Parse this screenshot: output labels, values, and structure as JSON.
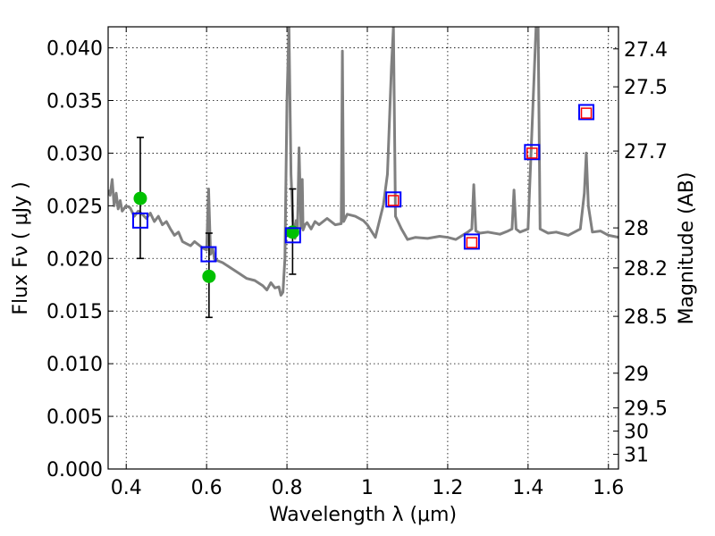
{
  "chart_data": {
    "type": "scatter",
    "xlabel": "Wavelength  λ (μm)",
    "ylabel": "Flux  Fν  ( μJy )",
    "ylabel_right": "Magnitude (AB)",
    "xlim": [
      0.355,
      1.625
    ],
    "ylim": [
      0.0,
      0.042
    ],
    "grid": true,
    "x_ticks": [
      0.4,
      0.6,
      0.8,
      1.0,
      1.2,
      1.4,
      1.6
    ],
    "x_tick_labels": [
      "0.4",
      "0.6",
      "0.8",
      "1",
      "1.2",
      "1.4",
      "1.6"
    ],
    "y_ticks": [
      0.0,
      0.005,
      0.01,
      0.015,
      0.02,
      0.025,
      0.03,
      0.035,
      0.04
    ],
    "y_tick_labels": [
      "0.000",
      "0.005",
      "0.010",
      "0.015",
      "0.020",
      "0.025",
      "0.030",
      "0.035",
      "0.040"
    ],
    "right_ticks": [
      {
        "label": "27.4",
        "flux": 0.0399
      },
      {
        "label": "27.5",
        "flux": 0.0363
      },
      {
        "label": "27.7",
        "flux": 0.0302
      },
      {
        "label": "28",
        "flux": 0.0229
      },
      {
        "label": "28.2",
        "flux": 0.0191
      },
      {
        "label": "28.5",
        "flux": 0.0145
      },
      {
        "label": "29",
        "flux": 0.0091
      },
      {
        "label": "29.5",
        "flux": 0.0058
      },
      {
        "label": "30",
        "flux": 0.0036
      },
      {
        "label": "31",
        "flux": 0.0014
      }
    ],
    "series": [
      {
        "kind": "model_spectrum",
        "color": "#808080",
        "x": [
          0.355,
          0.36,
          0.365,
          0.37,
          0.375,
          0.38,
          0.385,
          0.39,
          0.4,
          0.41,
          0.42,
          0.43,
          0.44,
          0.45,
          0.46,
          0.47,
          0.48,
          0.49,
          0.5,
          0.51,
          0.52,
          0.53,
          0.54,
          0.55,
          0.56,
          0.57,
          0.58,
          0.59,
          0.6,
          0.605,
          0.61,
          0.615,
          0.62,
          0.64,
          0.66,
          0.68,
          0.7,
          0.72,
          0.74,
          0.75,
          0.76,
          0.77,
          0.78,
          0.785,
          0.79,
          0.795,
          0.8,
          0.805,
          0.81,
          0.815,
          0.82,
          0.823,
          0.826,
          0.83,
          0.835,
          0.838,
          0.84,
          0.845,
          0.85,
          0.86,
          0.87,
          0.88,
          0.9,
          0.92,
          0.935,
          0.938,
          0.941,
          0.95,
          0.97,
          0.99,
          1.0,
          1.02,
          1.04,
          1.05,
          1.06,
          1.065,
          1.07,
          1.085,
          1.1,
          1.12,
          1.15,
          1.18,
          1.2,
          1.22,
          1.25,
          1.26,
          1.265,
          1.27,
          1.28,
          1.3,
          1.33,
          1.35,
          1.36,
          1.365,
          1.37,
          1.38,
          1.4,
          1.42,
          1.425,
          1.43,
          1.45,
          1.47,
          1.5,
          1.53,
          1.54,
          1.545,
          1.55,
          1.56,
          1.58,
          1.6,
          1.625
        ],
        "y": [
          0.0265,
          0.026,
          0.0275,
          0.025,
          0.0262,
          0.0247,
          0.0255,
          0.0245,
          0.025,
          0.0248,
          0.024,
          0.0245,
          0.0242,
          0.0238,
          0.0243,
          0.0235,
          0.024,
          0.0232,
          0.0235,
          0.0228,
          0.0222,
          0.0225,
          0.0216,
          0.0214,
          0.0212,
          0.0216,
          0.0213,
          0.021,
          0.0208,
          0.0266,
          0.0204,
          0.021,
          0.0199,
          0.0196,
          0.0191,
          0.0186,
          0.0181,
          0.0179,
          0.0174,
          0.017,
          0.0177,
          0.0172,
          0.0173,
          0.0165,
          0.0168,
          0.02,
          0.035,
          0.042,
          0.028,
          0.0235,
          0.0219,
          0.0236,
          0.0224,
          0.0305,
          0.0229,
          0.0275,
          0.0227,
          0.0232,
          0.0234,
          0.0228,
          0.0235,
          0.0232,
          0.0238,
          0.0232,
          0.0233,
          0.0397,
          0.0235,
          0.0242,
          0.024,
          0.0236,
          0.0232,
          0.022,
          0.0251,
          0.028,
          0.0382,
          0.042,
          0.024,
          0.0228,
          0.0218,
          0.022,
          0.0219,
          0.0221,
          0.022,
          0.0218,
          0.0225,
          0.0228,
          0.027,
          0.0226,
          0.0224,
          0.0225,
          0.0223,
          0.0226,
          0.0228,
          0.0265,
          0.0228,
          0.0225,
          0.0228,
          0.042,
          0.042,
          0.0228,
          0.0224,
          0.0225,
          0.0222,
          0.0228,
          0.0262,
          0.03,
          0.025,
          0.0225,
          0.0226,
          0.0222,
          0.022
        ]
      },
      {
        "kind": "observed_points",
        "color": "#00c000",
        "points": [
          {
            "x": 0.435,
            "y": 0.0257,
            "yerr": [
              0.02,
              0.0315
            ]
          },
          {
            "x": 0.606,
            "y": 0.0183,
            "yerr": [
              0.0144,
              0.0224
            ]
          },
          {
            "x": 0.814,
            "y": 0.0225,
            "yerr": [
              0.0185,
              0.0266
            ]
          }
        ]
      },
      {
        "kind": "model_photometry_blue",
        "color": "#0000ff",
        "x": [
          0.435,
          0.605,
          0.815,
          1.065,
          1.26,
          1.41,
          1.545
        ],
        "y": [
          0.0236,
          0.0204,
          0.0222,
          0.0256,
          0.0216,
          0.0301,
          0.0339
        ]
      },
      {
        "kind": "model_photometry_red",
        "color": "#ff0000",
        "x": [
          1.065,
          1.26,
          1.41,
          1.545
        ],
        "y": [
          0.0255,
          0.0215,
          0.03,
          0.0338
        ]
      }
    ]
  }
}
